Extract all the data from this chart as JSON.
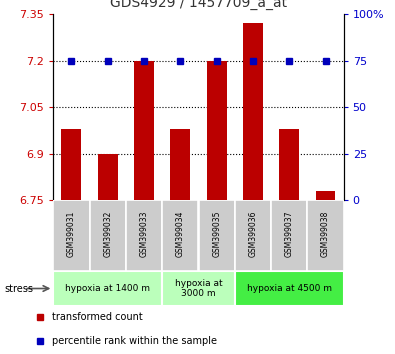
{
  "title": "GDS4929 / 1457709_a_at",
  "samples": [
    "GSM399031",
    "GSM399032",
    "GSM399033",
    "GSM399034",
    "GSM399035",
    "GSM399036",
    "GSM399037",
    "GSM399038"
  ],
  "bar_values": [
    6.98,
    6.9,
    7.2,
    6.98,
    7.2,
    7.32,
    6.98,
    6.78
  ],
  "percentile_values": [
    75,
    75,
    75,
    75,
    75,
    75,
    75,
    75
  ],
  "bar_bottom": 6.75,
  "ylim_left": [
    6.75,
    7.35
  ],
  "ylim_right": [
    0,
    100
  ],
  "yticks_left": [
    6.75,
    6.9,
    7.05,
    7.2,
    7.35
  ],
  "yticks_right": [
    0,
    25,
    50,
    75,
    100
  ],
  "grid_lines": [
    6.9,
    7.05,
    7.2
  ],
  "bar_color": "#bb0000",
  "dot_color": "#0000bb",
  "groups": [
    {
      "label": "hypoxia at 1400 m",
      "start": 0,
      "end": 3,
      "color": "#bbffbb"
    },
    {
      "label": "hypoxia at\n3000 m",
      "start": 3,
      "end": 5,
      "color": "#bbffbb"
    },
    {
      "label": "hypoxia at 4500 m",
      "start": 5,
      "end": 8,
      "color": "#44ee44"
    }
  ],
  "stress_label": "stress",
  "title_color": "#333333",
  "left_tick_color": "#cc0000",
  "right_tick_color": "#0000cc",
  "bg_color": "#ffffff",
  "plot_bg": "#ffffff",
  "sample_bg": "#cccccc",
  "legend_red_label": "transformed count",
  "legend_blue_label": "percentile rank within the sample"
}
